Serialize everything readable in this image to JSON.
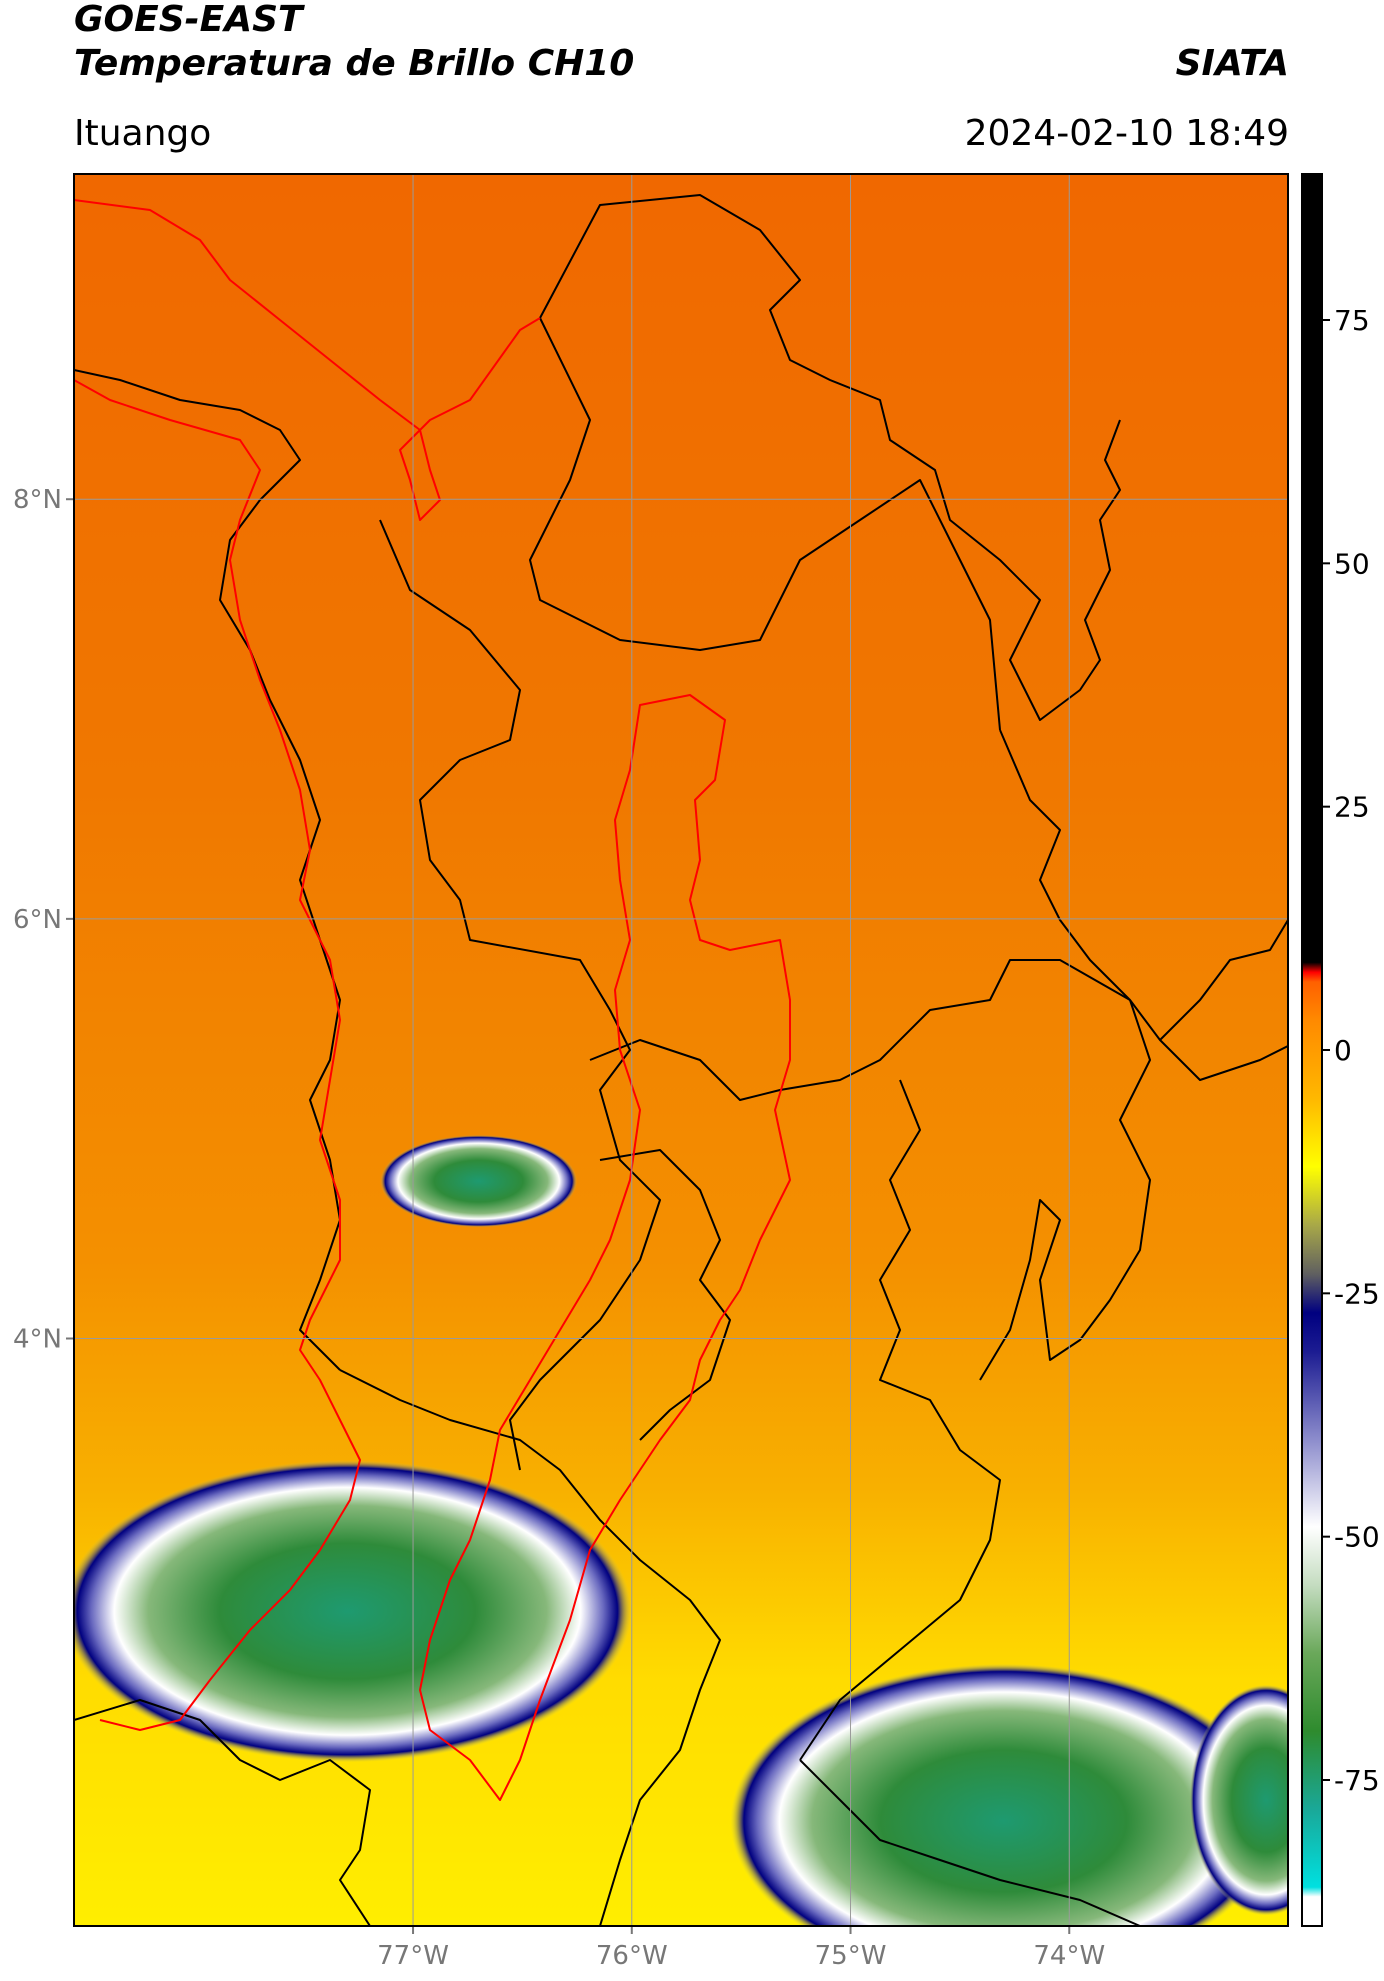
{
  "header": {
    "satellite": "GOES-EAST",
    "product": "Temperatura de Brillo CH10",
    "organization": "SIATA",
    "region": "Ituango",
    "timestamp": "2024-02-10 18:49"
  },
  "map": {
    "extent": {
      "lon_min": -78.55,
      "lon_max": -73.0,
      "lat_min": 1.2,
      "lat_max": 9.55
    },
    "lat_ticks": [
      {
        "value": 8,
        "label": "8°N"
      },
      {
        "value": 6,
        "label": "6°N"
      },
      {
        "value": 4,
        "label": "4°N"
      }
    ],
    "lon_ticks": [
      {
        "value": -77,
        "label": "77°W"
      },
      {
        "value": -76,
        "label": "76°W"
      },
      {
        "value": -75,
        "label": "75°W"
      },
      {
        "value": -74,
        "label": "74°W"
      }
    ],
    "colors": {
      "background_warm": "#f07a00",
      "border_departments": "#000000",
      "border_basin": "#ff0000",
      "grid": "#9a9a9a"
    },
    "cloud_cells": [
      {
        "lon": -77.3,
        "lat": 2.7,
        "rlon": 1.3,
        "rlat": 0.72
      },
      {
        "lon": -76.7,
        "lat": 4.75,
        "rlon": 0.45,
        "rlat": 0.22
      },
      {
        "lon": -74.3,
        "lat": 1.7,
        "rlon": 1.25,
        "rlat": 0.75
      },
      {
        "lon": -73.1,
        "lat": 1.8,
        "rlon": 0.35,
        "rlat": 0.55
      }
    ]
  },
  "colorbar": {
    "min": -90,
    "max": 90,
    "ticks": [
      {
        "value": 75,
        "label": "75"
      },
      {
        "value": 50,
        "label": "50"
      },
      {
        "value": 25,
        "label": "25"
      },
      {
        "value": 0,
        "label": "0"
      },
      {
        "value": -25,
        "label": "-25"
      },
      {
        "value": -50,
        "label": "-50"
      },
      {
        "value": -75,
        "label": "-75"
      }
    ],
    "stops": [
      {
        "value": -90,
        "color": "#ffffff"
      },
      {
        "value": -87,
        "color": "#ffffff"
      },
      {
        "value": -86,
        "color": "#00e0e0"
      },
      {
        "value": -78,
        "color": "#1aa898"
      },
      {
        "value": -70,
        "color": "#2e8b2e"
      },
      {
        "value": -62,
        "color": "#6aa85a"
      },
      {
        "value": -55,
        "color": "#c4dcc0"
      },
      {
        "value": -49,
        "color": "#ffffff"
      },
      {
        "value": -40,
        "color": "#8c8ccc"
      },
      {
        "value": -31,
        "color": "#1c1c92"
      },
      {
        "value": -27,
        "color": "#000080"
      },
      {
        "value": -23,
        "color": "#606060"
      },
      {
        "value": -18,
        "color": "#a8a848"
      },
      {
        "value": -12,
        "color": "#ffff00"
      },
      {
        "value": -5,
        "color": "#ffb800"
      },
      {
        "value": 3,
        "color": "#ff8a00"
      },
      {
        "value": 7,
        "color": "#ff6000"
      },
      {
        "value": 8,
        "color": "#ff0000"
      },
      {
        "value": 9,
        "color": "#000000"
      },
      {
        "value": 90,
        "color": "#000000"
      }
    ]
  }
}
